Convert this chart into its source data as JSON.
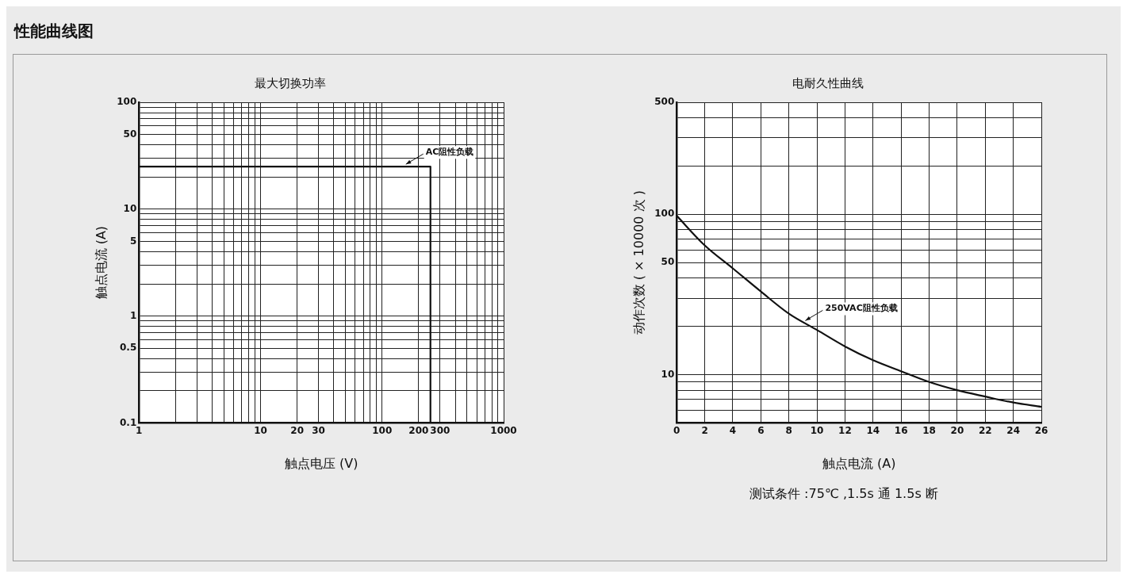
{
  "chart_data": [
    {
      "type": "line",
      "title": "最大切换功率",
      "xlabel": "触点电压 (V)",
      "ylabel": "触点电流 (A)",
      "log": "xy",
      "grid": true,
      "legend": false,
      "marker": "none",
      "line_style": "solid",
      "xlim": [
        1,
        1000
      ],
      "ylim": [
        0.1,
        100
      ],
      "xticks": [
        1,
        {
          "value": 2,
          "label": null
        },
        {
          "value": 3,
          "label": null
        },
        {
          "value": 4,
          "label": null
        },
        {
          "value": 5,
          "label": null
        },
        {
          "value": 6,
          "label": null
        },
        {
          "value": 7,
          "label": null
        },
        {
          "value": 8,
          "label": null
        },
        {
          "value": 9,
          "label": null
        },
        10,
        20,
        30,
        {
          "value": 40,
          "label": null
        },
        {
          "value": 50,
          "label": null
        },
        {
          "value": 60,
          "label": null
        },
        {
          "value": 70,
          "label": null
        },
        {
          "value": 80,
          "label": null
        },
        {
          "value": 90,
          "label": null
        },
        100,
        200,
        300,
        {
          "value": 400,
          "label": null
        },
        {
          "value": 500,
          "label": null
        },
        {
          "value": 600,
          "label": null
        },
        {
          "value": 700,
          "label": null
        },
        {
          "value": 800,
          "label": null
        },
        {
          "value": 900,
          "label": null
        },
        1000
      ],
      "yticks": [
        0.1,
        {
          "value": 0.2,
          "label": null
        },
        {
          "value": 0.3,
          "label": null
        },
        {
          "value": 0.4,
          "label": null
        },
        0.5,
        {
          "value": 0.6,
          "label": null
        },
        {
          "value": 0.7,
          "label": null
        },
        {
          "value": 0.8,
          "label": null
        },
        {
          "value": 0.9,
          "label": null
        },
        1,
        {
          "value": 2,
          "label": null
        },
        {
          "value": 3,
          "label": null
        },
        {
          "value": 4,
          "label": null
        },
        5,
        {
          "value": 6,
          "label": null
        },
        {
          "value": 7,
          "label": null
        },
        {
          "value": 8,
          "label": null
        },
        {
          "value": 9,
          "label": null
        },
        10,
        {
          "value": 20,
          "label": null
        },
        {
          "value": 30,
          "label": null
        },
        {
          "value": 40,
          "label": null
        },
        50,
        {
          "value": 60,
          "label": null
        },
        {
          "value": 70,
          "label": null
        },
        {
          "value": 80,
          "label": null
        },
        {
          "value": 90,
          "label": null
        },
        100
      ],
      "series": [
        {
          "color": "#111111",
          "x": [
            1,
            250,
            250
          ],
          "values": [
            25,
            25,
            0.1
          ]
        }
      ],
      "annotations": [
        "性能曲线图",
        {
          "text": "AC阻性负载",
          "x": 150,
          "y": 25
        }
      ]
    },
    {
      "type": "line",
      "title": "电耐久性曲线",
      "xlabel": "触点电流 (A)",
      "ylabel": "动作次数 ( × 10000 次 )",
      "log": "y",
      "grid": true,
      "legend": false,
      "marker": "none",
      "line_style": "solid",
      "xlim": [
        0,
        26
      ],
      "ylim": [
        5,
        500
      ],
      "xticks": [
        0,
        2,
        4,
        6,
        8,
        10,
        12,
        14,
        16,
        18,
        20,
        22,
        24,
        26
      ],
      "yticks": [
        {
          "value": 5,
          "label": null
        },
        {
          "value": 6,
          "label": null
        },
        {
          "value": 7,
          "label": null
        },
        {
          "value": 8,
          "label": null
        },
        {
          "value": 9,
          "label": null
        },
        10,
        {
          "value": 20,
          "label": null
        },
        {
          "value": 30,
          "label": null
        },
        {
          "value": 40,
          "label": null
        },
        50,
        {
          "value": 60,
          "label": null
        },
        {
          "value": 70,
          "label": null
        },
        {
          "value": 80,
          "label": null
        },
        {
          "value": 90,
          "label": null
        },
        100,
        {
          "value": 200,
          "label": null
        },
        {
          "value": 300,
          "label": null
        },
        {
          "value": 400,
          "label": null
        },
        500
      ],
      "series": [
        {
          "color": "#111111",
          "x": [
            0,
            2,
            4,
            6,
            8,
            10,
            12,
            14,
            16,
            18,
            20,
            22,
            24,
            26
          ],
          "values": [
            98,
            64,
            46,
            33,
            24,
            19,
            15,
            12.3,
            10.5,
            9,
            8,
            7.3,
            6.7,
            6.3
          ]
        }
      ],
      "annotations": [
        {
          "text": "250VAC阻性负载",
          "x": 9,
          "y": 21
        },
        "测试条件 :75℃ ,1.5s 通 1.5s 断"
      ]
    }
  ]
}
